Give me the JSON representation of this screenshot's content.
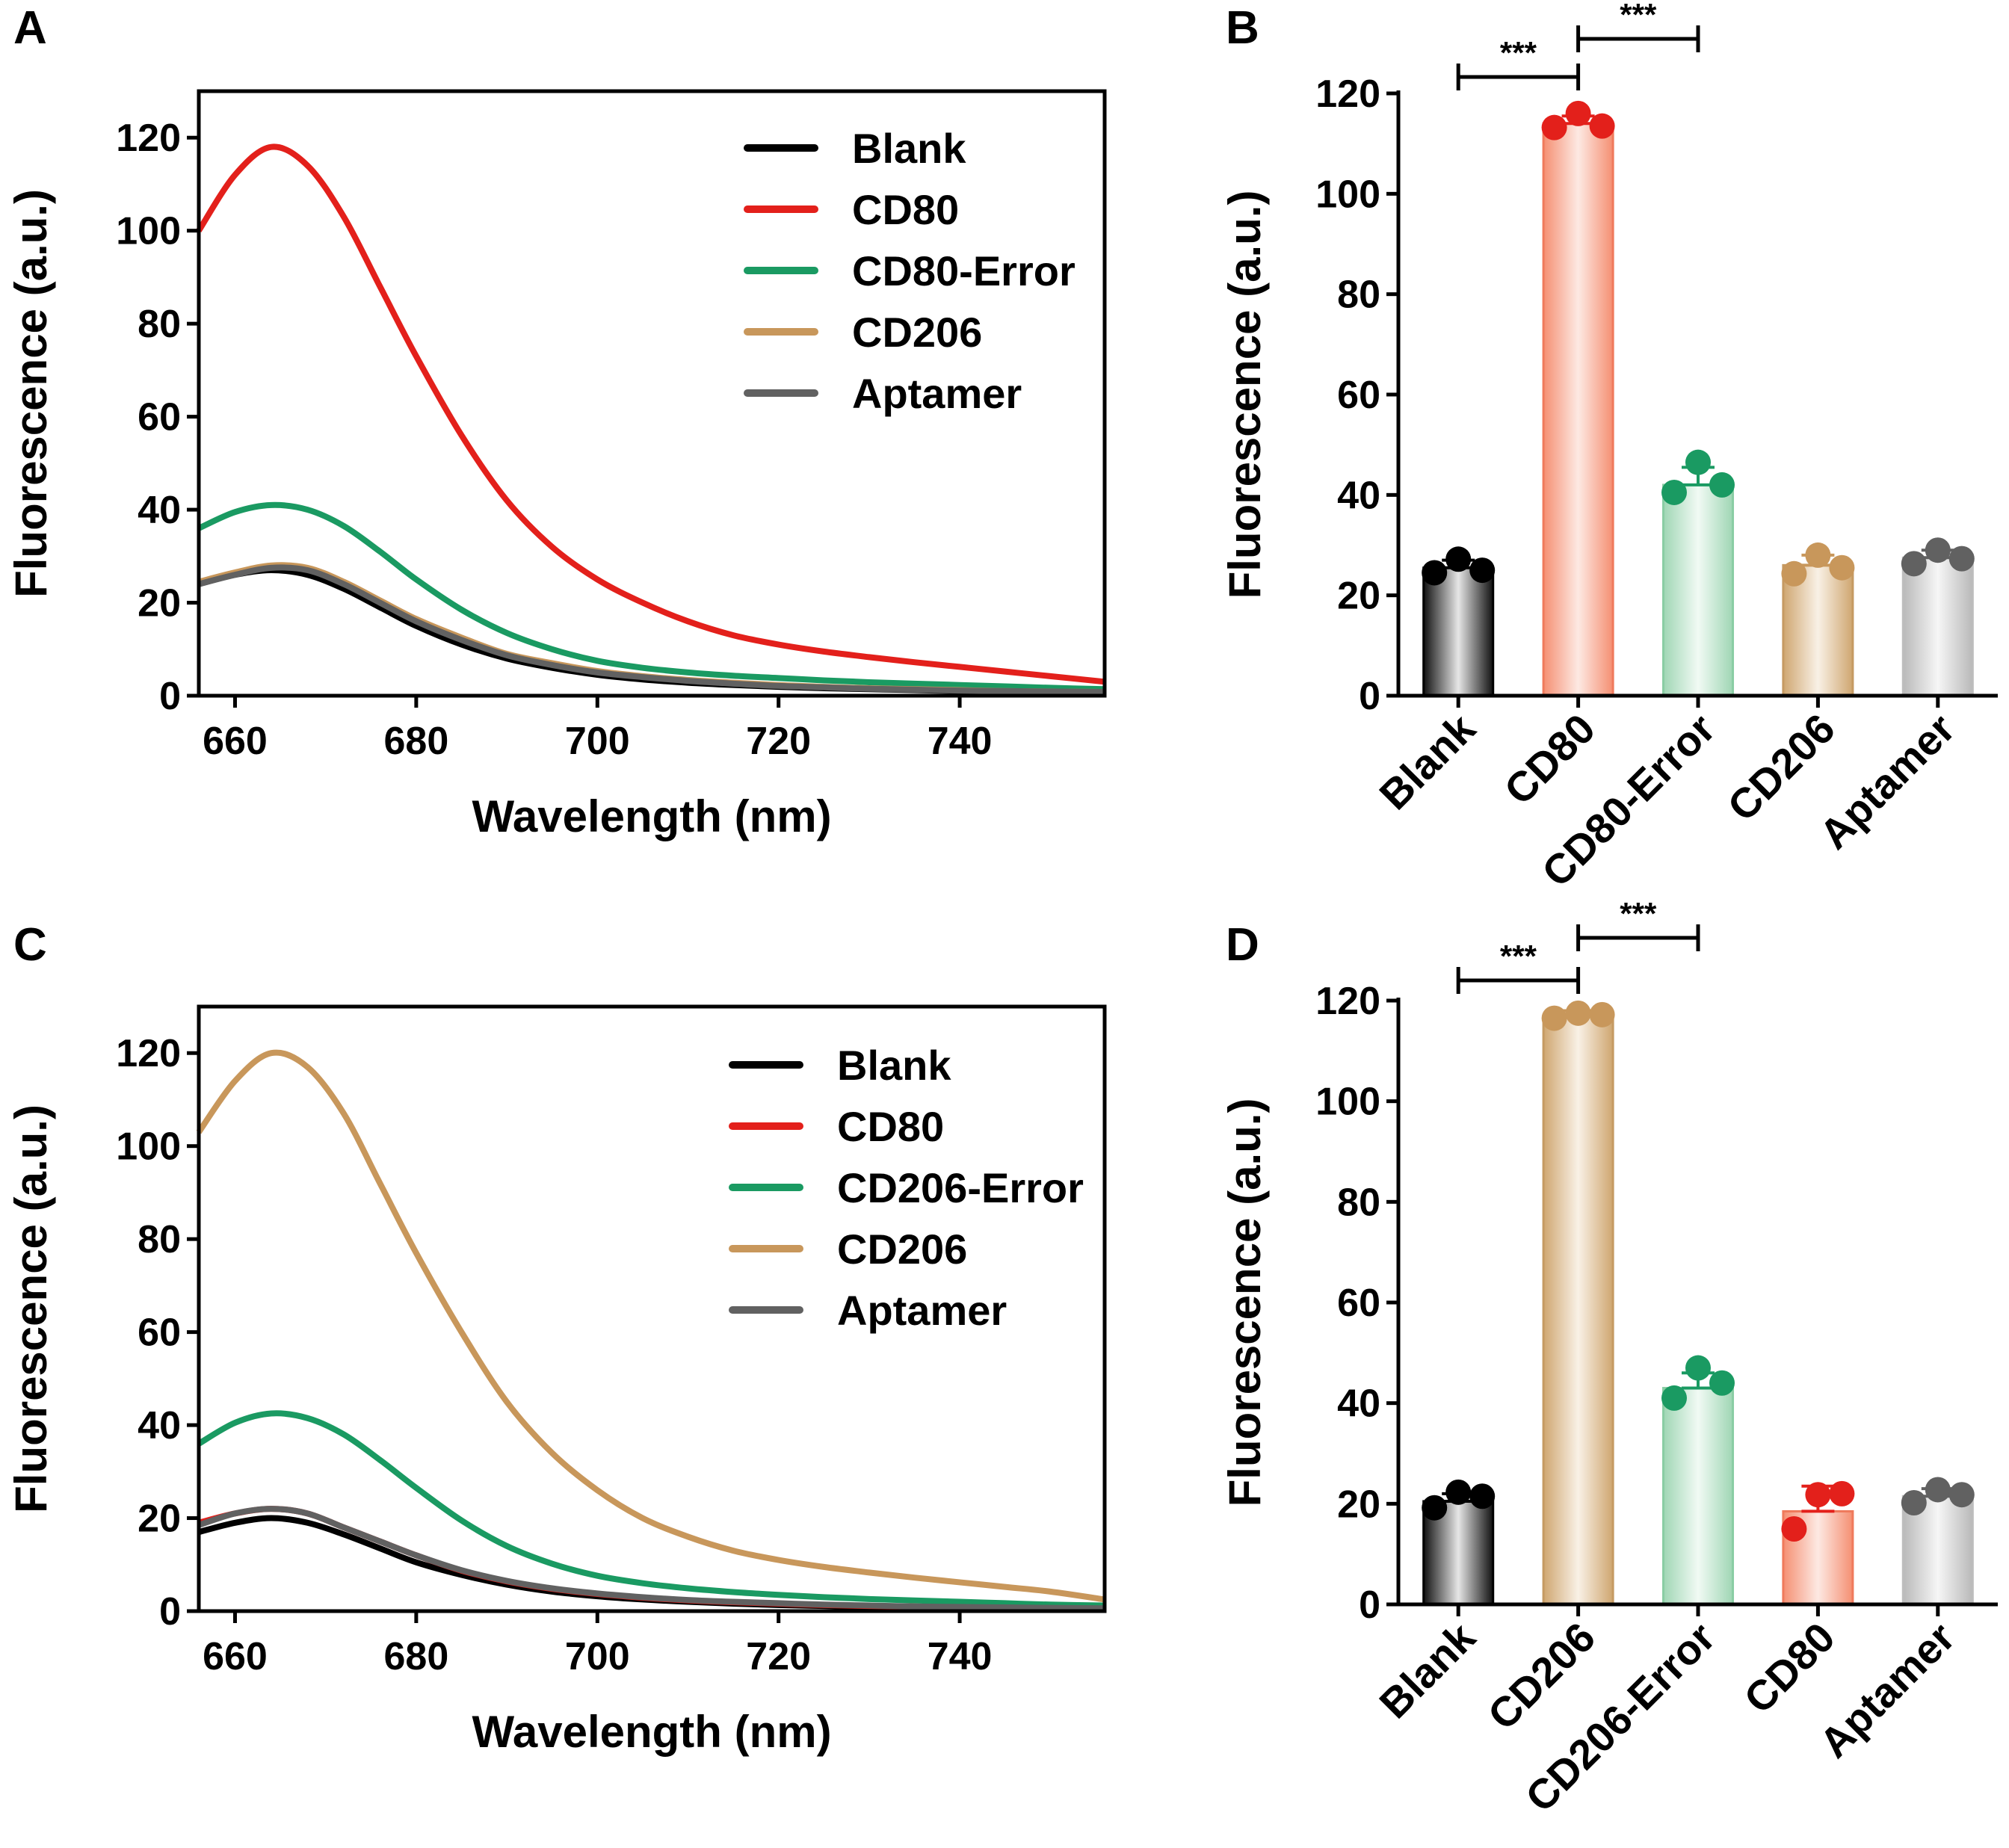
{
  "colors": {
    "Blank": "#000000",
    "CD80": "#e3201b",
    "CD80-Error": "#1a9a62",
    "CD206-Error": "#1a9a62",
    "CD206": "#c8975b",
    "Aptamer": "#616161"
  },
  "chart_data": [
    {
      "panel": "A",
      "type": "line",
      "xlabel": "Wavelength (nm)",
      "ylabel": "Fluorescence  (a.u.)",
      "xlim": [
        656,
        756
      ],
      "ylim": [
        0,
        130
      ],
      "xticks": [
        "660",
        "680",
        "700",
        "720",
        "740"
      ],
      "yticks": [
        "0",
        "20",
        "40",
        "60",
        "80",
        "100",
        "120"
      ],
      "legend": "top-right",
      "x": [
        656,
        660,
        664,
        668,
        672,
        676,
        680,
        685,
        690,
        695,
        700,
        705,
        710,
        715,
        720,
        725,
        730,
        735,
        740,
        745,
        750,
        756
      ],
      "series": [
        {
          "name": "Blank",
          "values": [
            24,
            26,
            27,
            26,
            23,
            19,
            15,
            11,
            8,
            6,
            4.5,
            3.5,
            2.8,
            2.3,
            1.9,
            1.6,
            1.4,
            1.2,
            1.0,
            0.9,
            0.8,
            0.7
          ]
        },
        {
          "name": "CD80",
          "values": [
            100,
            112,
            118,
            114,
            103,
            88,
            73,
            56,
            42,
            32,
            25,
            20,
            16,
            13,
            11,
            9.5,
            8.3,
            7.2,
            6.2,
            5.2,
            4.2,
            3.0
          ]
        },
        {
          "name": "CD80-Error",
          "values": [
            36,
            39.5,
            41,
            40,
            36.5,
            31,
            25,
            18.5,
            13.5,
            10,
            7.5,
            6,
            5,
            4.3,
            3.8,
            3.3,
            2.9,
            2.6,
            2.3,
            2.0,
            1.7,
            1.4
          ]
        },
        {
          "name": "CD206",
          "values": [
            24.5,
            26.5,
            28,
            27.5,
            24.5,
            20.5,
            16.5,
            12.5,
            9,
            7,
            5.3,
            4.2,
            3.4,
            2.8,
            2.3,
            1.9,
            1.6,
            1.4,
            1.2,
            1.0,
            0.9,
            0.8
          ]
        },
        {
          "name": "Aptamer",
          "values": [
            24,
            26,
            27.5,
            27,
            24,
            20,
            16,
            12,
            8.7,
            6.6,
            5.0,
            4.0,
            3.2,
            2.6,
            2.1,
            1.8,
            1.5,
            1.3,
            1.1,
            1.0,
            0.9,
            0.8
          ]
        }
      ]
    },
    {
      "panel": "B",
      "type": "bar",
      "ylabel": "Fluorescence  (a.u.)",
      "ylim": [
        0,
        120
      ],
      "yticks": [
        "0",
        "20",
        "40",
        "60",
        "80",
        "100",
        "120"
      ],
      "categories": [
        "Blank",
        "CD80",
        "CD80-Error",
        "CD206",
        "Aptamer"
      ],
      "values": [
        25.5,
        114,
        42,
        26,
        27.5
      ],
      "errors": [
        1.5,
        1.5,
        3.5,
        2.0,
        1.5
      ],
      "points": [
        [
          24.5,
          27.2,
          25.0
        ],
        [
          113.2,
          116,
          113.5
        ],
        [
          40.5,
          46.5,
          42
        ],
        [
          24.3,
          28,
          25.5
        ],
        [
          26.3,
          29,
          27.3
        ]
      ],
      "significance": [
        {
          "from": 0,
          "to": 1,
          "label": "***"
        },
        {
          "from": 1,
          "to": 2,
          "label": "***"
        }
      ]
    },
    {
      "panel": "C",
      "type": "line",
      "xlabel": "Wavelength (nm)",
      "ylabel": "Fluorescence (a.u.)",
      "xlim": [
        656,
        756
      ],
      "ylim": [
        0,
        130
      ],
      "xticks": [
        "660",
        "680",
        "700",
        "720",
        "740"
      ],
      "yticks": [
        "0",
        "20",
        "40",
        "60",
        "80",
        "100",
        "120"
      ],
      "legend": "top-right",
      "x": [
        656,
        660,
        664,
        668,
        672,
        676,
        680,
        685,
        690,
        695,
        700,
        705,
        710,
        715,
        720,
        725,
        730,
        735,
        740,
        745,
        750,
        756
      ],
      "series": [
        {
          "name": "Blank",
          "values": [
            17,
            19,
            20,
            19,
            16.5,
            13.5,
            10.5,
            7.8,
            5.7,
            4.2,
            3.2,
            2.5,
            2.0,
            1.6,
            1.3,
            1.1,
            0.9,
            0.8,
            0.7,
            0.6,
            0.5,
            0.4
          ]
        },
        {
          "name": "CD80",
          "values": [
            19,
            21,
            22,
            21,
            18,
            15,
            12,
            8.7,
            6.4,
            4.8,
            3.7,
            2.9,
            2.3,
            1.9,
            1.6,
            1.3,
            1.1,
            1.0,
            0.9,
            0.8,
            0.7,
            0.6
          ]
        },
        {
          "name": "CD206-Error",
          "values": [
            36,
            40.5,
            42.5,
            41.5,
            38,
            32.5,
            26.5,
            19.5,
            14,
            10.2,
            7.6,
            6,
            4.9,
            4.1,
            3.5,
            3.0,
            2.6,
            2.3,
            2.0,
            1.7,
            1.4,
            1.2
          ]
        },
        {
          "name": "CD206",
          "values": [
            103,
            114,
            120,
            117,
            107,
            92,
            77,
            60,
            45,
            34,
            26,
            20,
            16,
            13,
            11,
            9.5,
            8.3,
            7.2,
            6.2,
            5.2,
            4.2,
            2.5
          ]
        },
        {
          "name": "Aptamer",
          "values": [
            18.5,
            21,
            22,
            21,
            18,
            15,
            12,
            8.8,
            6.5,
            4.9,
            3.8,
            3.0,
            2.4,
            2.0,
            1.7,
            1.4,
            1.2,
            1.0,
            0.9,
            0.8,
            0.7,
            0.6
          ]
        }
      ]
    },
    {
      "panel": "D",
      "type": "bar",
      "ylabel": "Fluorescence  (a.u.)",
      "ylim": [
        0,
        120
      ],
      "yticks": [
        "0",
        "20",
        "40",
        "60",
        "80",
        "100",
        "120"
      ],
      "categories": [
        "Blank",
        "CD206",
        "CD206-Error",
        "CD80",
        "Aptamer"
      ],
      "values": [
        20.5,
        117,
        43,
        18.5,
        21.5
      ],
      "errors": [
        1.5,
        1.0,
        3.0,
        5.0,
        1.5
      ],
      "points": [
        [
          19.2,
          22.3,
          21.5
        ],
        [
          116.5,
          117.5,
          117.2
        ],
        [
          41,
          47,
          44
        ],
        [
          15,
          21.8,
          22
        ],
        [
          20.2,
          22.8,
          21.8
        ]
      ],
      "significance": [
        {
          "from": 0,
          "to": 1,
          "label": "***"
        },
        {
          "from": 1,
          "to": 2,
          "label": "***"
        }
      ]
    }
  ]
}
